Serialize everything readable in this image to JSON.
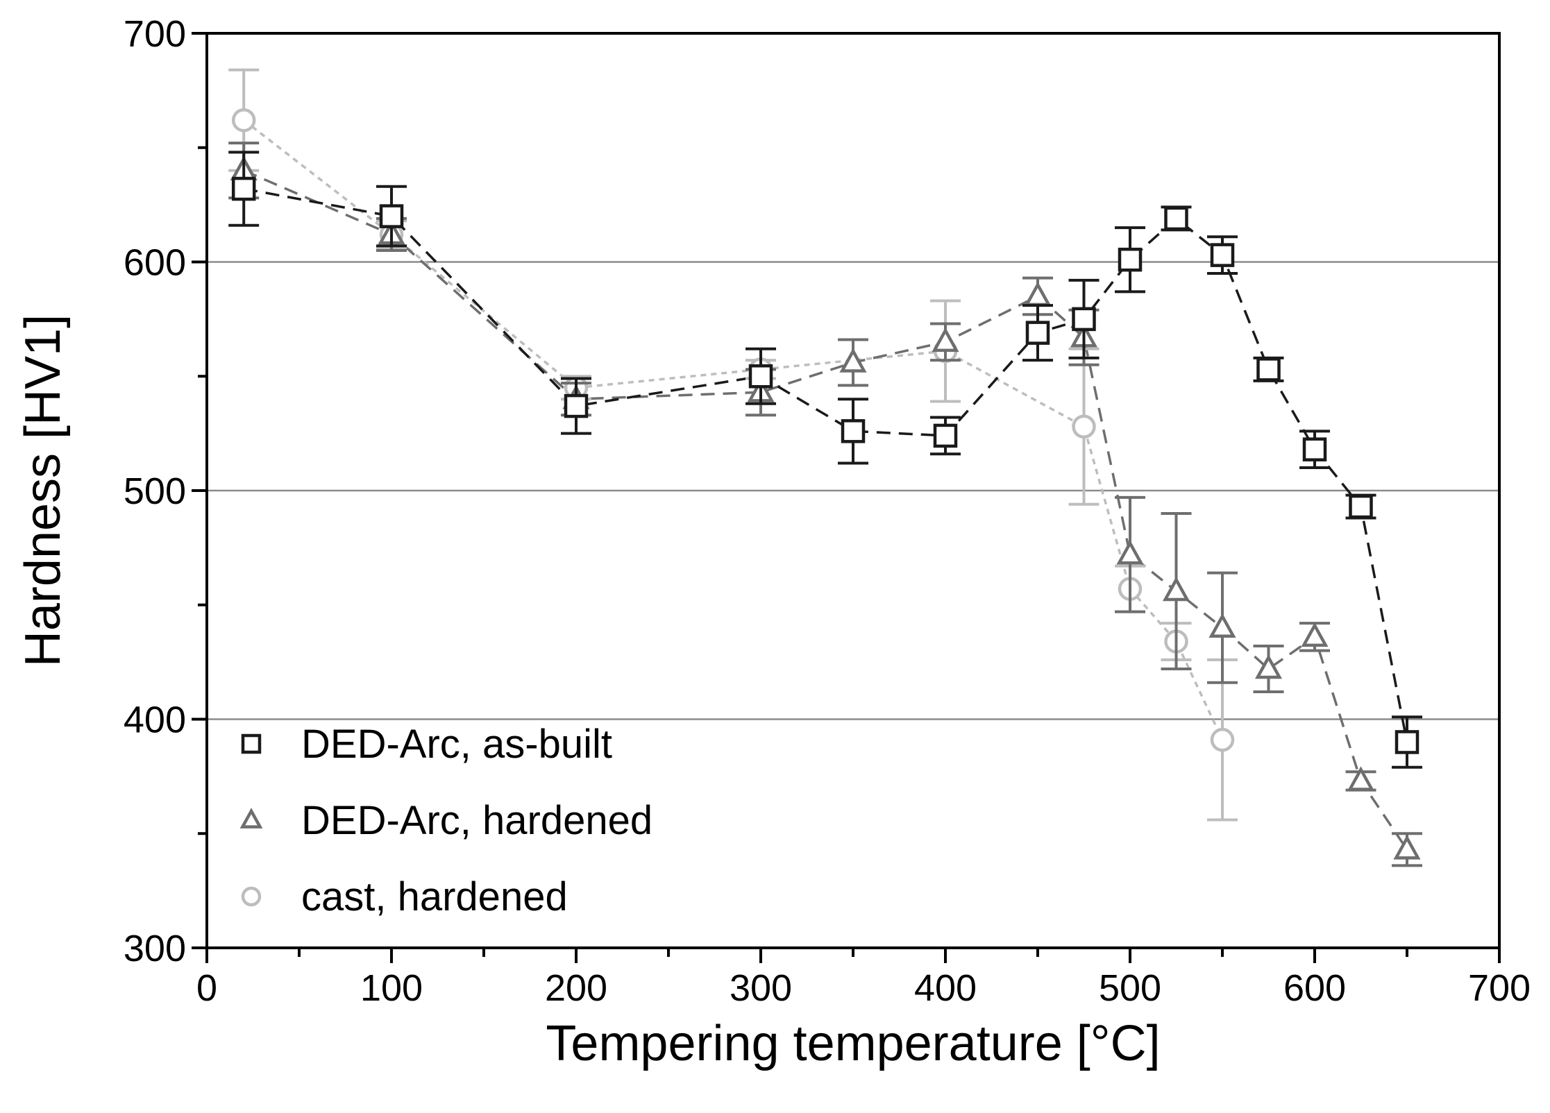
{
  "chart_data": {
    "type": "scatter",
    "title": "",
    "xlabel": "Tempering temperature [°C]",
    "ylabel": "Hardness [HV1]",
    "xlim": [
      0,
      700
    ],
    "ylim": [
      300,
      700
    ],
    "xticks": [
      0,
      100,
      200,
      300,
      400,
      500,
      600,
      700
    ],
    "yticks": [
      300,
      400,
      500,
      600,
      700
    ],
    "grid_y": [
      400,
      500,
      600
    ],
    "legend_position": "bottom-left",
    "series": [
      {
        "name": "DED-Arc, as-built",
        "marker": "square",
        "color": "#1a1a1a",
        "line": "dashed",
        "x": [
          20,
          100,
          200,
          300,
          350,
          400,
          450,
          475,
          500,
          525,
          550,
          575,
          600,
          625,
          650
        ],
        "y": [
          632,
          620,
          537,
          550,
          526,
          524,
          569,
          575,
          601,
          619,
          603,
          553,
          518,
          493,
          390
        ],
        "err": [
          16,
          13,
          12,
          12,
          14,
          8,
          12,
          17,
          14,
          5,
          8,
          5,
          8,
          5,
          11
        ]
      },
      {
        "name": "DED-Arc, hardened",
        "marker": "triangle",
        "color": "#6e6e6e",
        "line": "dashed",
        "x": [
          20,
          100,
          200,
          300,
          350,
          400,
          450,
          475,
          500,
          525,
          550,
          575,
          600,
          625,
          650
        ],
        "y": [
          640,
          612,
          540,
          543,
          556,
          565,
          585,
          567,
          472,
          456,
          440,
          422,
          436,
          373,
          343
        ],
        "err": [
          12,
          7,
          7,
          10,
          10,
          8,
          8,
          12,
          25,
          34,
          24,
          10,
          6,
          4,
          7
        ]
      },
      {
        "name": "cast, hardened",
        "marker": "circle",
        "color": "#bdbdbd",
        "line": "dotted",
        "x": [
          20,
          100,
          200,
          300,
          400,
          475,
          500,
          525,
          550
        ],
        "y": [
          662,
          612,
          545,
          553,
          561,
          528,
          457,
          434,
          391
        ],
        "err": [
          22,
          6,
          5,
          4,
          22,
          34,
          10,
          8,
          35
        ]
      }
    ]
  }
}
